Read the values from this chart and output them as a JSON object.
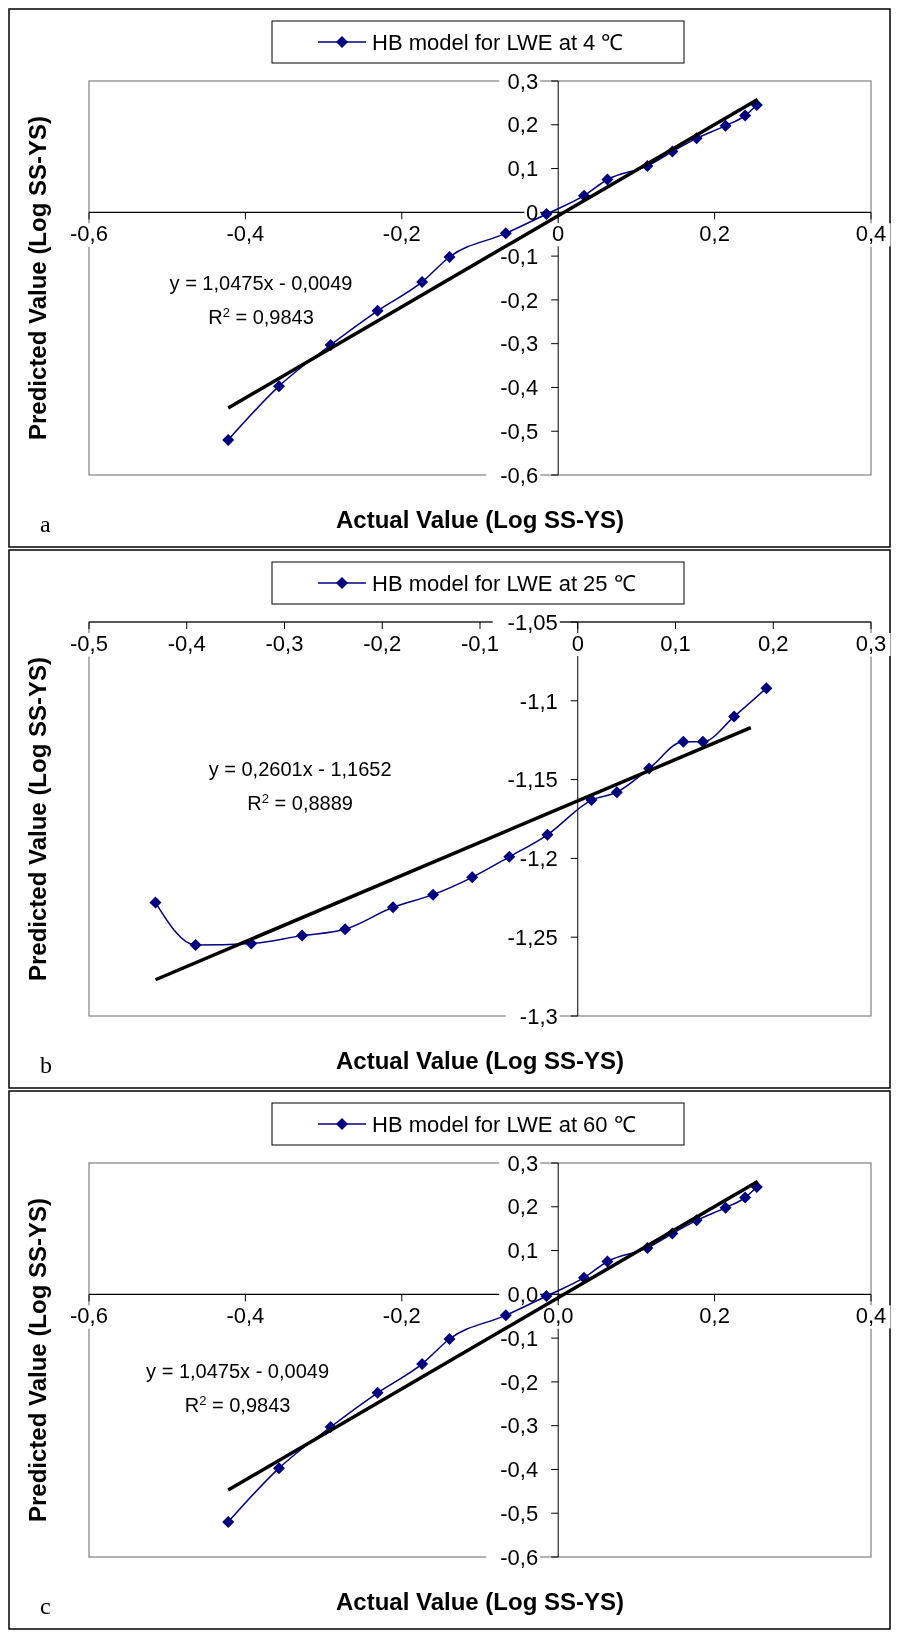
{
  "chart_data": [
    {
      "type": "line",
      "xlabel": "Actual Value (Log SS-YS)",
      "ylabel": "Predicted Value (Log SS-YS)",
      "legend": "top",
      "xlim": [
        -0.6,
        0.4
      ],
      "ylim": [
        -0.6,
        0.3
      ],
      "xticks": [
        {
          "value": -0.6,
          "label": "-0,6"
        },
        {
          "value": -0.4,
          "label": "-0,4"
        },
        {
          "value": -0.2,
          "label": "-0,2"
        },
        0,
        {
          "value": 0.2,
          "label": "0,2"
        },
        {
          "value": 0.4,
          "label": "0,4"
        }
      ],
      "yticks": [
        {
          "value": 0.3,
          "label": "0,3"
        },
        {
          "value": 0.2,
          "label": "0,2"
        },
        {
          "value": 0.1,
          "label": "0,1"
        },
        0,
        {
          "value": -0.1,
          "label": "-0,1"
        },
        {
          "value": -0.2,
          "label": "-0,2"
        },
        {
          "value": -0.3,
          "label": "-0,3"
        },
        {
          "value": -0.4,
          "label": "-0,4"
        },
        {
          "value": -0.5,
          "label": "-0,5"
        },
        {
          "value": -0.6,
          "label": "-0,6"
        }
      ],
      "annotations": [
        "y = 1,0475x - 0,0049",
        "R$^{2}$ = 0,9843",
        "a"
      ],
      "series": [
        {
          "name": "HB model for LWE at 4 ℃",
          "color": "#000080",
          "marker": "diamond",
          "x": [
            -0.422,
            -0.357,
            -0.291,
            -0.231,
            -0.174,
            -0.139,
            -0.067,
            -0.015,
            0.033,
            0.063,
            0.114,
            0.146,
            0.177,
            0.214,
            0.239,
            0.254
          ],
          "values": [
            -0.52,
            -0.397,
            -0.303,
            -0.225,
            -0.159,
            -0.102,
            -0.048,
            -0.004,
            0.038,
            0.075,
            0.106,
            0.139,
            0.169,
            0.198,
            0.221,
            0.245
          ]
        },
        {
          "type": "line",
          "color": "#000000",
          "marker": "none",
          "x": [
            -0.422,
            0.255
          ],
          "values": [
            -0.447,
            0.258
          ]
        }
      ]
    },
    {
      "type": "line",
      "xlabel": "Actual Value (Log SS-YS)",
      "ylabel": "Predicted Value (Log SS-YS)",
      "legend": "top",
      "xlim": [
        -0.5,
        0.3
      ],
      "ylim": [
        -1.3,
        -1.05
      ],
      "xticks": [
        {
          "value": -0.5,
          "label": "-0,5"
        },
        {
          "value": -0.4,
          "label": "-0,4"
        },
        {
          "value": -0.3,
          "label": "-0,3"
        },
        {
          "value": -0.2,
          "label": "-0,2"
        },
        {
          "value": -0.1,
          "label": "-0,1"
        },
        0,
        {
          "value": 0.1,
          "label": "0,1"
        },
        {
          "value": 0.2,
          "label": "0,2"
        },
        {
          "value": 0.3,
          "label": "0,3"
        }
      ],
      "yticks": [
        {
          "value": -1.05,
          "label": "-1,05"
        },
        {
          "value": -1.1,
          "label": "-1,1"
        },
        {
          "value": -1.15,
          "label": "-1,15"
        },
        {
          "value": -1.2,
          "label": "-1,2"
        },
        {
          "value": -1.25,
          "label": "-1,25"
        },
        {
          "value": -1.3,
          "label": "-1,3"
        }
      ],
      "annotations": [
        "y = 0,2601x - 1,1652",
        "R$^{2}$ = 0,8889",
        "b"
      ],
      "series": [
        {
          "name": "HB model for LWE at 25 ℃",
          "color": "#000080",
          "marker": "diamond",
          "x": [
            -0.432,
            -0.391,
            -0.334,
            -0.282,
            -0.238,
            -0.189,
            -0.148,
            -0.108,
            -0.07,
            -0.031,
            0.014,
            0.04,
            0.073,
            0.108,
            0.128,
            0.16,
            0.193
          ],
          "values": [
            -1.228,
            -1.255,
            -1.254,
            -1.249,
            -1.245,
            -1.231,
            -1.223,
            -1.212,
            -1.199,
            -1.185,
            -1.163,
            -1.158,
            -1.143,
            -1.126,
            -1.126,
            -1.11,
            -1.092
          ]
        },
        {
          "type": "line",
          "color": "#000000",
          "marker": "none",
          "x": [
            -0.432,
            0.177
          ],
          "values": [
            -1.277,
            -1.117
          ]
        }
      ]
    },
    {
      "type": "line",
      "xlabel": "Actual Value (Log SS-YS)",
      "ylabel": "Predicted Value (Log SS-YS)",
      "legend": "top",
      "xlim": [
        -0.6,
        0.4
      ],
      "ylim": [
        -0.6,
        0.3
      ],
      "xticks": [
        {
          "value": -0.6,
          "label": "-0,6"
        },
        {
          "value": -0.4,
          "label": "-0,4"
        },
        {
          "value": -0.2,
          "label": "-0,2"
        },
        {
          "value": 0,
          "label": "0,0"
        },
        {
          "value": 0.2,
          "label": "0,2"
        },
        {
          "value": 0.4,
          "label": "0,4"
        }
      ],
      "yticks": [
        {
          "value": 0.3,
          "label": "0,3"
        },
        {
          "value": 0.2,
          "label": "0,2"
        },
        {
          "value": 0.1,
          "label": "0,1"
        },
        {
          "value": 0,
          "label": "0,0"
        },
        {
          "value": -0.1,
          "label": "-0,1"
        },
        {
          "value": -0.2,
          "label": "-0,2"
        },
        {
          "value": -0.3,
          "label": "-0,3"
        },
        {
          "value": -0.4,
          "label": "-0,4"
        },
        {
          "value": -0.5,
          "label": "-0,5"
        },
        {
          "value": -0.6,
          "label": "-0,6"
        }
      ],
      "annotations": [
        "y = 1,0475x - 0,0049",
        "R$^{2}$ = 0,9843",
        "c"
      ],
      "series": [
        {
          "name": "HB model for LWE at 60 ℃",
          "color": "#000080",
          "marker": "diamond",
          "x": [
            -0.422,
            -0.357,
            -0.291,
            -0.231,
            -0.174,
            -0.139,
            -0.067,
            -0.015,
            0.033,
            0.063,
            0.114,
            0.146,
            0.177,
            0.214,
            0.239,
            0.254
          ],
          "values": [
            -0.52,
            -0.397,
            -0.303,
            -0.225,
            -0.159,
            -0.102,
            -0.048,
            -0.004,
            0.038,
            0.075,
            0.106,
            0.139,
            0.169,
            0.198,
            0.221,
            0.245
          ]
        },
        {
          "type": "line",
          "color": "#000000",
          "marker": "none",
          "x": [
            -0.422,
            0.255
          ],
          "values": [
            -0.447,
            0.258
          ]
        }
      ]
    }
  ]
}
